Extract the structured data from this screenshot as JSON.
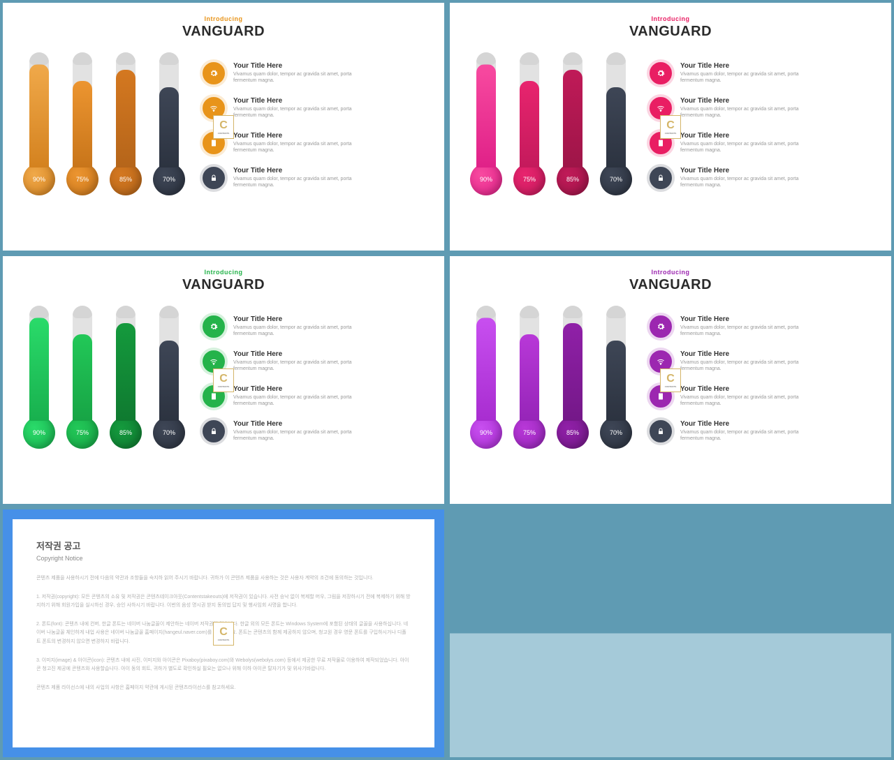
{
  "slides": [
    {
      "subtitle": "Introducing",
      "title": "VANGUARD",
      "accent": "#e8941a",
      "accent_dark": "#c77812",
      "thermometers": [
        {
          "value": 90,
          "label": "90%",
          "fill": "#f0a94a",
          "bulb": "#d4821f"
        },
        {
          "value": 75,
          "label": "75%",
          "fill": "#ec9530",
          "bulb": "#c8751a"
        },
        {
          "value": 85,
          "label": "85%",
          "fill": "#d47820",
          "bulb": "#b5651a"
        },
        {
          "value": 70,
          "label": "70%",
          "fill": "#3e4656",
          "bulb": "#2c3340"
        }
      ]
    },
    {
      "subtitle": "Introducing",
      "title": "VANGUARD",
      "accent": "#e91e63",
      "accent_dark": "#c2185b",
      "thermometers": [
        {
          "value": 90,
          "label": "90%",
          "fill": "#f84aa0",
          "bulb": "#e02188"
        },
        {
          "value": 75,
          "label": "75%",
          "fill": "#e8246e",
          "bulb": "#c41a5c"
        },
        {
          "value": 85,
          "label": "85%",
          "fill": "#c01a58",
          "bulb": "#9e1548"
        },
        {
          "value": 70,
          "label": "70%",
          "fill": "#3e4656",
          "bulb": "#2c3340"
        }
      ]
    },
    {
      "subtitle": "Introducing",
      "title": "VANGUARD",
      "accent": "#24b34a",
      "accent_dark": "#1a9638",
      "thermometers": [
        {
          "value": 90,
          "label": "90%",
          "fill": "#2adb6a",
          "bulb": "#18b04e"
        },
        {
          "value": 75,
          "label": "75%",
          "fill": "#22c858",
          "bulb": "#17a445"
        },
        {
          "value": 85,
          "label": "85%",
          "fill": "#149a3d",
          "bulb": "#0f7a30"
        },
        {
          "value": 70,
          "label": "70%",
          "fill": "#3e4656",
          "bulb": "#2c3340"
        }
      ]
    },
    {
      "subtitle": "Introducing",
      "title": "VANGUARD",
      "accent": "#9c27b0",
      "accent_dark": "#7b1fa2",
      "thermometers": [
        {
          "value": 90,
          "label": "90%",
          "fill": "#c84ff0",
          "bulb": "#a82dd0"
        },
        {
          "value": 75,
          "label": "75%",
          "fill": "#b838d8",
          "bulb": "#9625b8"
        },
        {
          "value": 85,
          "label": "85%",
          "fill": "#9020a8",
          "bulb": "#741888"
        },
        {
          "value": 70,
          "label": "70%",
          "fill": "#3e4656",
          "bulb": "#2c3340"
        }
      ]
    }
  ],
  "legend_items": [
    {
      "title": "Your Title Here",
      "desc": "Vivamus quam dolor, tempor ac gravida sit amet, porta fermentum magna.",
      "icon": "gear"
    },
    {
      "title": "Your Title Here",
      "desc": "Vivamus quam dolor, tempor ac gravida sit amet, porta fermentum magna.",
      "icon": "wifi"
    },
    {
      "title": "Your Title Here",
      "desc": "Vivamus quam dolor, tempor ac gravida sit amet, porta fermentum magna.",
      "icon": "doc"
    },
    {
      "title": "Your Title Here",
      "desc": "Vivamus quam dolor, tempor ac gravida sit amet, porta fermentum magna.",
      "icon": "lock"
    }
  ],
  "legend_last_color": "#3e4656",
  "notice": {
    "title": "저작권 공고",
    "subtitle": "Copyright Notice",
    "p1": "콘텐츠 제품을 사용하시기 전에 다음의 약관과 조항들을 숙지하 읽어 주시기 바랍니다. 귀하가 이 콘텐츠 제품을 사용하는 것은 사용자 계약의 조건에 동의하는 것입니다.",
    "p2": "1. 저작권(copyright): 모든 콘텐츠의 소유 및 저작권은 콘텐츠테이크아웃(Contentstakeouts)에 저작권이 있습니다. 사전 승낙 없이 복제할 머우, 그림을 저장하시기 전에 복제하기 위해 방지하기 위해 회원가입을 실시하신 경우, 승인 사하시기 바랍니다. 이번의 음성 명시권 받지 동의법 답지 및 행사임회 사명을 합니다.",
    "p3": "2. 폰트(font): 콘텐츠 내에 컨버, 한글 폰트는 네이버 나눔글꼴이 제안하는 네이버 저작권이 있습니다. 한글 외의 모든 폰트는 Windows System에 포함된 상태의 글꼴을 사용하십니다. 네이버 나눔글꼴 체인하게 내업 사용은 네이버 나눔글꼴 홈페이지(hangeul.naver.com)를 참고하세요. 폰트는 콘텐츠의 함께 제공하지 않으며, 청고원 경우 영문 폰트를 구입하시거나 디폴트 폰트의 변경하지 않으면 변경하지 바랍니다.",
    "p4": "3. 이미지(image) & 아이콘(icon): 콘텐츠 내에 사진, 이미지와 아이콘은 Pixaboy(pixaboy.com)와 Webolys(webolys.com) 등에서 제공한 무료 저작물로 이용하여 제작되었습니다. 아이콘 청고진 제공에 콘텐츠와 사용할습니다. 아이 동의 회트, 귀하가 별도로 확인하실 필요는 없으나 위해 이하 아이콘 탈자기가 및 위사기바랍니다.",
    "p5": "콘텐츠 제품 라이선스에 내의 사업의 사항은 홈페이지 약관에 게시된 콘텐츠라이선스를 참고하세요."
  }
}
